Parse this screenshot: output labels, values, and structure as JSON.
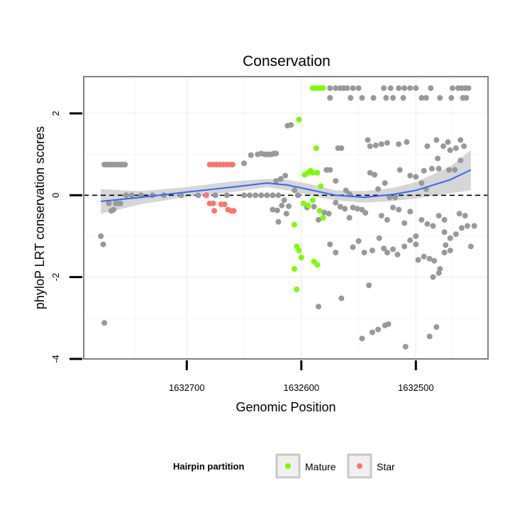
{
  "colors": {
    "mature": "#7CFC00",
    "star": "#F8766D",
    "other": "#999999",
    "smooth": "#3366FF",
    "ribbon": "#C8C8C8"
  },
  "chart_data": {
    "type": "scatter",
    "title": "Conservation",
    "xlabel": "Genomic Position",
    "ylabel": "phyloP LRT conservation scores",
    "x_reversed": true,
    "xlim": [
      1632790,
      1632437
    ],
    "ylim": [
      -4,
      2.9
    ],
    "x_ticks": [
      1632700,
      1632600,
      1632500
    ],
    "x_tick_labels": [
      "1632700",
      "1632600",
      "1632500"
    ],
    "y_ticks": [
      -4,
      -2,
      0,
      2
    ],
    "y_tick_labels": [
      "-4",
      "-2",
      "0",
      "2"
    ],
    "hline": 0,
    "legend": {
      "title": "Hairpin partition",
      "position": "bottom",
      "entries": [
        {
          "label": "Mature",
          "color_key": "mature"
        },
        {
          "label": "Star",
          "color_key": "star"
        }
      ]
    },
    "smooth_line": {
      "x": [
        1632775,
        1632740,
        1632700,
        1632660,
        1632630,
        1632612,
        1632590,
        1632570,
        1632545,
        1632520,
        1632500,
        1632470,
        1632452
      ],
      "y": [
        -0.15,
        -0.05,
        0.08,
        0.2,
        0.3,
        0.25,
        0.12,
        0.0,
        -0.05,
        0.02,
        0.12,
        0.38,
        0.62
      ],
      "ci_low": [
        -0.45,
        -0.22,
        -0.04,
        0.08,
        0.2,
        0.12,
        -0.02,
        -0.12,
        -0.18,
        -0.14,
        -0.08,
        0.05,
        0.12
      ],
      "ci_high": [
        0.15,
        0.1,
        0.2,
        0.34,
        0.4,
        0.38,
        0.26,
        0.12,
        0.1,
        0.18,
        0.32,
        0.7,
        1.1
      ]
    },
    "series": [
      {
        "name": "Other",
        "color_key": "other",
        "points": [
          [
            1632775,
            -1.0
          ],
          [
            1632773,
            -1.2
          ],
          [
            1632772,
            -3.12
          ],
          [
            1632772,
            0.75
          ],
          [
            1632770,
            0.75
          ],
          [
            1632768,
            0.75
          ],
          [
            1632766,
            0.75
          ],
          [
            1632764,
            0.75
          ],
          [
            1632762,
            0.75
          ],
          [
            1632760,
            0.75
          ],
          [
            1632758,
            0.75
          ],
          [
            1632756,
            0.75
          ],
          [
            1632754,
            0.75
          ],
          [
            1632768,
            -0.2
          ],
          [
            1632766,
            -0.38
          ],
          [
            1632764,
            -0.35
          ],
          [
            1632762,
            -0.2
          ],
          [
            1632760,
            -0.2
          ],
          [
            1632758,
            -0.2
          ],
          [
            1632753,
            0.0
          ],
          [
            1632748,
            0.0
          ],
          [
            1632740,
            0.0
          ],
          [
            1632730,
            0.0
          ],
          [
            1632720,
            0.0
          ],
          [
            1632705,
            0.0
          ],
          [
            1632690,
            0.0
          ],
          [
            1632675,
            0.0
          ],
          [
            1632665,
            0.0
          ],
          [
            1632650,
            0.0
          ],
          [
            1632645,
            0.0
          ],
          [
            1632640,
            0.0
          ],
          [
            1632635,
            0.0
          ],
          [
            1632630,
            0.0
          ],
          [
            1632625,
            0.0
          ],
          [
            1632620,
            0.0
          ],
          [
            1632650,
            0.78
          ],
          [
            1632644,
            0.98
          ],
          [
            1632638,
            1.0
          ],
          [
            1632635,
            1.02
          ],
          [
            1632632,
            1.0
          ],
          [
            1632630,
            1.0
          ],
          [
            1632628,
            1.0
          ],
          [
            1632626,
            1.0
          ],
          [
            1632624,
            1.02
          ],
          [
            1632622,
            1.02
          ],
          [
            1632612,
            1.7
          ],
          [
            1632609,
            1.72
          ],
          [
            1632625,
            -0.35
          ],
          [
            1632621,
            -0.37
          ],
          [
            1632617,
            -0.25
          ],
          [
            1632615,
            -0.12
          ],
          [
            1632611,
            -0.27
          ],
          [
            1632606,
            0.12
          ],
          [
            1632603,
            0.0
          ],
          [
            1632622,
            0.35
          ],
          [
            1632618,
            0.4
          ],
          [
            1632614,
            0.48
          ],
          [
            1632620,
            -0.65
          ],
          [
            1632613,
            -0.45
          ],
          [
            1632575,
            2.62
          ],
          [
            1632570,
            2.62
          ],
          [
            1632566,
            2.62
          ],
          [
            1632563,
            2.62
          ],
          [
            1632560,
            2.62
          ],
          [
            1632555,
            2.62
          ],
          [
            1632550,
            2.62
          ],
          [
            1632528,
            2.62
          ],
          [
            1632522,
            2.62
          ],
          [
            1632515,
            2.62
          ],
          [
            1632510,
            2.62
          ],
          [
            1632505,
            2.62
          ],
          [
            1632500,
            2.62
          ],
          [
            1632487,
            2.62
          ],
          [
            1632468,
            2.62
          ],
          [
            1632463,
            2.62
          ],
          [
            1632460,
            2.62
          ],
          [
            1632457,
            2.62
          ],
          [
            1632454,
            2.62
          ],
          [
            1632575,
            2.38
          ],
          [
            1632557,
            2.38
          ],
          [
            1632547,
            2.38
          ],
          [
            1632537,
            2.38
          ],
          [
            1632526,
            2.38
          ],
          [
            1632520,
            2.38
          ],
          [
            1632511,
            2.38
          ],
          [
            1632495,
            2.38
          ],
          [
            1632491,
            2.38
          ],
          [
            1632479,
            2.38
          ],
          [
            1632469,
            2.38
          ],
          [
            1632459,
            2.38
          ],
          [
            1632456,
            2.38
          ],
          [
            1632578,
            0.62
          ],
          [
            1632575,
            0.62
          ],
          [
            1632570,
            0.35
          ],
          [
            1632568,
            1.15
          ],
          [
            1632565,
            1.15
          ],
          [
            1632561,
            0.12
          ],
          [
            1632558,
            0.03
          ],
          [
            1632555,
            -0.3
          ],
          [
            1632551,
            -0.33
          ],
          [
            1632547,
            -0.35
          ],
          [
            1632544,
            -0.43
          ],
          [
            1632585,
            -0.6
          ],
          [
            1632580,
            -0.42
          ],
          [
            1632576,
            -0.45
          ],
          [
            1632570,
            -0.18
          ],
          [
            1632566,
            -0.28
          ],
          [
            1632562,
            -0.33
          ],
          [
            1632558,
            -0.55
          ],
          [
            1632575,
            -1.2
          ],
          [
            1632570,
            -1.4
          ],
          [
            1632555,
            -1.27
          ],
          [
            1632550,
            -1.12
          ],
          [
            1632545,
            -1.4
          ],
          [
            1632538,
            -1.35
          ],
          [
            1632532,
            -1.05
          ],
          [
            1632528,
            -1.3
          ],
          [
            1632525,
            -1.4
          ],
          [
            1632520,
            -1.32
          ],
          [
            1632516,
            -1.45
          ],
          [
            1632595,
            -0.3
          ],
          [
            1632589,
            -0.28
          ],
          [
            1632585,
            -2.72
          ],
          [
            1632565,
            -2.52
          ],
          [
            1632541,
            -2.2
          ],
          [
            1632547,
            -3.5
          ],
          [
            1632538,
            -3.35
          ],
          [
            1632533,
            -3.28
          ],
          [
            1632527,
            -3.18
          ],
          [
            1632524,
            -3.15
          ],
          [
            1632509,
            -3.7
          ],
          [
            1632488,
            -3.45
          ],
          [
            1632482,
            -3.22
          ],
          [
            1632542,
            1.35
          ],
          [
            1632540,
            1.2
          ],
          [
            1632535,
            1.22
          ],
          [
            1632530,
            1.25
          ],
          [
            1632525,
            1.28
          ],
          [
            1632515,
            1.25
          ],
          [
            1632508,
            1.3
          ],
          [
            1632540,
            0.55
          ],
          [
            1632536,
            0.5
          ],
          [
            1632533,
            0.15
          ],
          [
            1632527,
            0.3
          ],
          [
            1632523,
            -0.05
          ],
          [
            1632518,
            -0.05
          ],
          [
            1632514,
            0.62
          ],
          [
            1632505,
            0.48
          ],
          [
            1632500,
            0.45
          ],
          [
            1632493,
            0.6
          ],
          [
            1632480,
            0.65
          ],
          [
            1632530,
            -0.5
          ],
          [
            1632525,
            -0.6
          ],
          [
            1632520,
            -0.3
          ],
          [
            1632515,
            -0.35
          ],
          [
            1632510,
            -0.68
          ],
          [
            1632505,
            -0.4
          ],
          [
            1632500,
            -1.0
          ],
          [
            1632495,
            -0.6
          ],
          [
            1632490,
            -0.7
          ],
          [
            1632485,
            -0.75
          ],
          [
            1632480,
            -0.5
          ],
          [
            1632475,
            -0.6
          ],
          [
            1632500,
            -1.2
          ],
          [
            1632493,
            -1.5
          ],
          [
            1632488,
            -1.55
          ],
          [
            1632475,
            -1.4
          ],
          [
            1632470,
            -1.35
          ],
          [
            1632484,
            -1.6
          ],
          [
            1632479,
            -1.8
          ],
          [
            1632474,
            -1.22
          ],
          [
            1632510,
            -1.25
          ],
          [
            1632505,
            -1.1
          ],
          [
            1632498,
            -1.58
          ],
          [
            1632485,
            -2.0
          ],
          [
            1632480,
            -1.9
          ],
          [
            1632475,
            -0.9
          ],
          [
            1632470,
            -1.05
          ],
          [
            1632465,
            -0.95
          ],
          [
            1632460,
            -0.8
          ],
          [
            1632470,
            1.1
          ],
          [
            1632465,
            1.15
          ],
          [
            1632461,
            1.35
          ],
          [
            1632458,
            1.2
          ],
          [
            1632495,
            0.3
          ],
          [
            1632491,
            0.15
          ],
          [
            1632486,
            0.65
          ],
          [
            1632481,
            0.9
          ],
          [
            1632476,
            1.2
          ],
          [
            1632472,
            1.3
          ],
          [
            1632466,
            0.62
          ],
          [
            1632461,
            0.85
          ],
          [
            1632455,
            -0.75
          ],
          [
            1632449,
            -0.75
          ],
          [
            1632462,
            -0.45
          ],
          [
            1632457,
            -0.5
          ],
          [
            1632452,
            -1.25
          ],
          [
            1632490,
            1.2
          ],
          [
            1632482,
            1.35
          ],
          [
            1632471,
            0.62
          ]
        ]
      },
      {
        "name": "Mature",
        "color_key": "mature",
        "points": [
          [
            1632590,
            2.62
          ],
          [
            1632587,
            2.62
          ],
          [
            1632584,
            2.62
          ],
          [
            1632581,
            2.62
          ],
          [
            1632602,
            1.85
          ],
          [
            1632587,
            1.15
          ],
          [
            1632597,
            0.5
          ],
          [
            1632594,
            0.55
          ],
          [
            1632592,
            0.6
          ],
          [
            1632590,
            0.55
          ],
          [
            1632586,
            0.55
          ],
          [
            1632583,
            0.22
          ],
          [
            1632598,
            -0.2
          ],
          [
            1632594,
            -0.25
          ],
          [
            1632590,
            -0.12
          ],
          [
            1632584,
            -0.38
          ],
          [
            1632581,
            -0.55
          ],
          [
            1632606,
            -0.72
          ],
          [
            1632604,
            -1.25
          ],
          [
            1632602,
            -1.35
          ],
          [
            1632600,
            -1.52
          ],
          [
            1632606,
            -1.8
          ],
          [
            1632604,
            -2.3
          ],
          [
            1632589,
            -1.62
          ],
          [
            1632586,
            -1.7
          ]
        ]
      },
      {
        "name": "Star",
        "color_key": "star",
        "points": [
          [
            1632680,
            0.75
          ],
          [
            1632677,
            0.75
          ],
          [
            1632674,
            0.75
          ],
          [
            1632671,
            0.75
          ],
          [
            1632668,
            0.75
          ],
          [
            1632665,
            0.75
          ],
          [
            1632662,
            0.75
          ],
          [
            1632660,
            0.75
          ],
          [
            1632683,
            0.0
          ],
          [
            1632680,
            -0.2
          ],
          [
            1632677,
            -0.2
          ],
          [
            1632676,
            -0.38
          ],
          [
            1632670,
            -0.22
          ],
          [
            1632667,
            -0.22
          ],
          [
            1632664,
            -0.35
          ],
          [
            1632661,
            -0.38
          ],
          [
            1632659,
            -0.38
          ]
        ]
      }
    ]
  }
}
